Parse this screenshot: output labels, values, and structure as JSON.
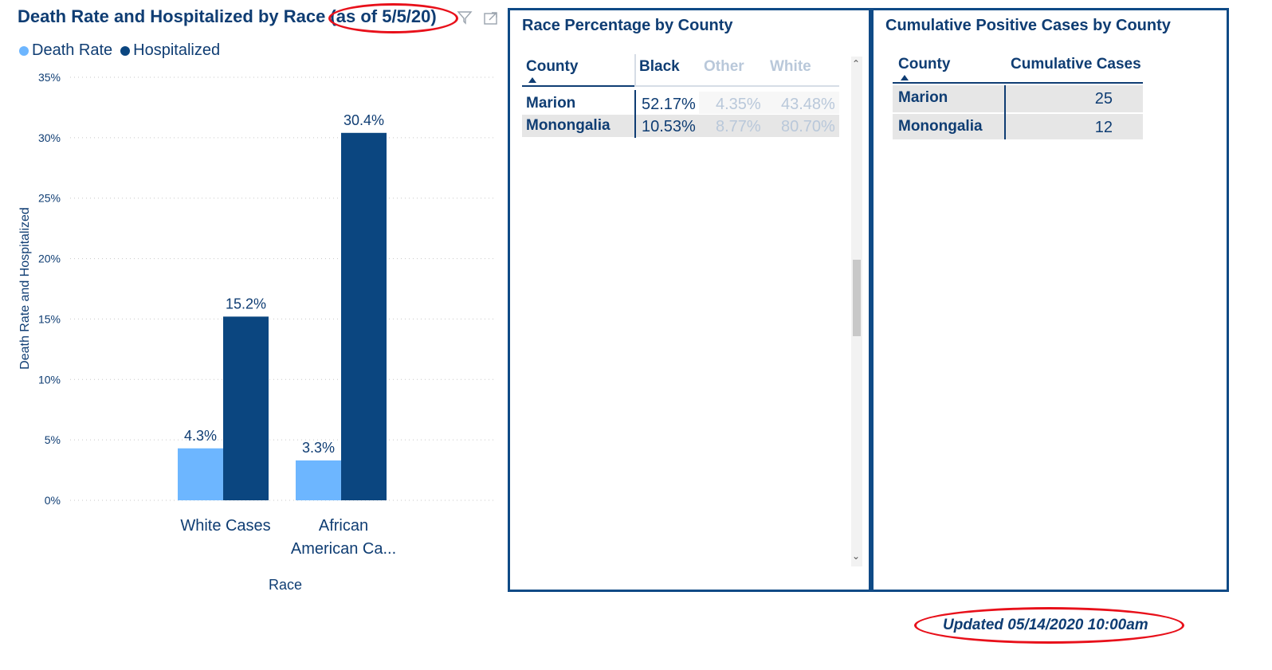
{
  "chart_panel": {
    "title": "Death Rate and Hospitalized by Race (as of 5/5/20)",
    "icons": {
      "filter": "filter-icon",
      "focus": "focus-mode-icon"
    }
  },
  "chart_data": {
    "type": "bar",
    "title": "Death Rate and Hospitalized by Race (as of 5/5/20)",
    "categories": [
      "White Cases",
      "African American Ca..."
    ],
    "series": [
      {
        "name": "Death Rate",
        "values": [
          4.3,
          3.3
        ],
        "color": "#6db6ff"
      },
      {
        "name": "Hospitalized",
        "values": [
          15.2,
          30.4
        ],
        "color": "#0b4680"
      }
    ],
    "data_labels": [
      [
        "4.3%",
        "3.3%"
      ],
      [
        "15.2%",
        "30.4%"
      ]
    ],
    "xlabel": "Race",
    "ylabel": "Death Rate and Hospitalized",
    "ylim": [
      0,
      35
    ],
    "yticks": [
      "0%",
      "5%",
      "10%",
      "15%",
      "20%",
      "25%",
      "30%",
      "35%"
    ],
    "ytick_values": [
      0,
      5,
      10,
      15,
      20,
      25,
      30,
      35
    ],
    "grid": true,
    "legend_position": "top-left"
  },
  "race_table": {
    "title": "Race Percentage by County",
    "columns": [
      "County",
      "Black",
      "Other",
      "White"
    ],
    "rows": [
      {
        "county": "Marion",
        "black": "52.17%",
        "other": "4.35%",
        "white": "43.48%"
      },
      {
        "county": "Monongalia",
        "black": "10.53%",
        "other": "8.77%",
        "white": "80.70%"
      }
    ]
  },
  "cases_table": {
    "title": "Cumulative Positive Cases by County",
    "columns": [
      "County",
      "Cumulative Cases"
    ],
    "rows": [
      {
        "county": "Marion",
        "cases": "25"
      },
      {
        "county": "Monongalia",
        "cases": "12"
      }
    ]
  },
  "footer": {
    "updated": "Updated 05/14/2020 10:00am"
  },
  "colors": {
    "accent": "#0f3d73",
    "annotation": "#e8101a"
  }
}
